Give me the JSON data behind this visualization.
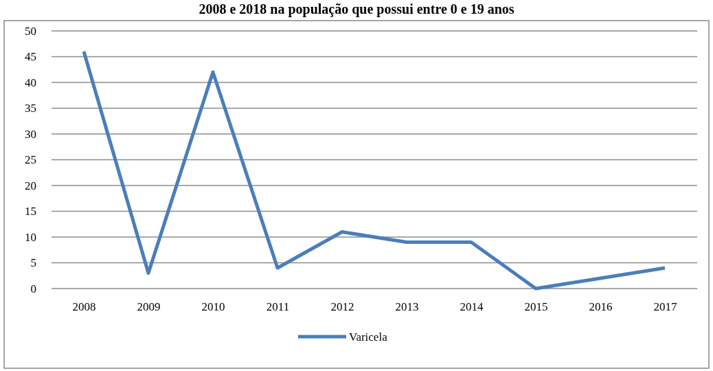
{
  "chart_data": {
    "type": "line",
    "title": "2008 e 2018 na população que possui entre 0 e 19 anos",
    "categories": [
      "2008",
      "2009",
      "2010",
      "2011",
      "2012",
      "2013",
      "2014",
      "2015",
      "2016",
      "2017"
    ],
    "series": [
      {
        "name": "Varicela",
        "color": "#4a7ebb",
        "values": [
          46,
          3,
          42,
          4,
          11,
          9,
          9,
          0,
          2,
          4
        ]
      }
    ],
    "ylim": [
      0,
      50
    ],
    "yticks": [
      0,
      5,
      10,
      15,
      20,
      25,
      30,
      35,
      40,
      45,
      50
    ],
    "grid": "y",
    "legend": "bottom",
    "marker": "none",
    "line_style": "solid"
  }
}
